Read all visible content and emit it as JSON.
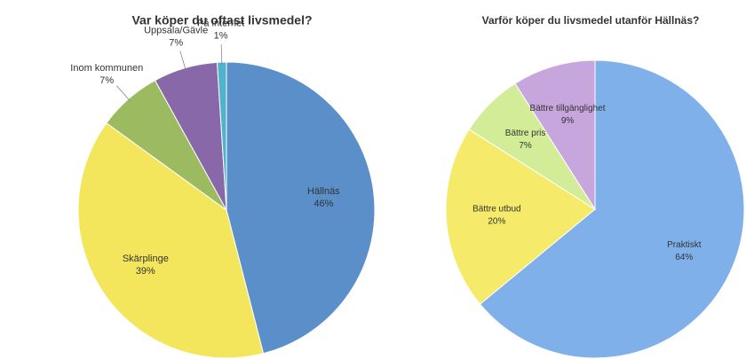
{
  "chart_data": [
    {
      "type": "pie",
      "title": "Var köper du oftast livsmedel?",
      "categories": [
        "Hällnäs",
        "Skärplinge",
        "Inom kommunen",
        "Uppsala/Gävle",
        "På internet"
      ],
      "values": [
        46,
        39,
        7,
        7,
        1
      ],
      "value_labels": [
        "46%",
        "39%",
        "7%",
        "7%",
        "1%"
      ],
      "colors": [
        "#5b8fc9",
        "#f4e65c",
        "#9cba5f",
        "#8868a8",
        "#4fb3cc"
      ]
    },
    {
      "type": "pie",
      "title": "Varför köper du livsmedel utanför Hällnäs?",
      "categories": [
        "Praktiskt",
        "Bättre utbud",
        "Bättre pris",
        "Bättre tillgänglighet"
      ],
      "values": [
        64,
        20,
        7,
        9
      ],
      "value_labels": [
        "64%",
        "20%",
        "7%",
        "9%"
      ],
      "colors": [
        "#7fb0ea",
        "#f6ea6a",
        "#d3ec98",
        "#c7a6de"
      ]
    }
  ]
}
